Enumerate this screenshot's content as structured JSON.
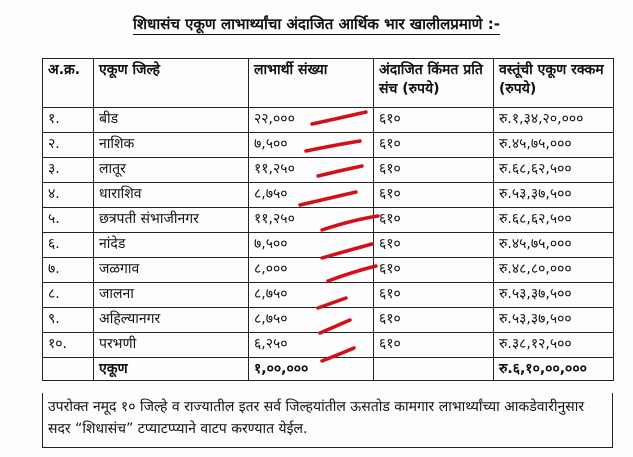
{
  "title": "शिधासंच  एकूण लाभार्थ्यांचा अंदाजित आर्थिक भार खालीलप्रमाणे :-",
  "table": {
    "header": [
      "अ.क्र.",
      "एकूण जिल्हे",
      "लाभार्थी संख्या",
      "अंदाजित किंमत प्रति संच (रुपये)",
      "वस्तूंची एकूण रक्कम (रुपये)"
    ],
    "rows": [
      [
        "१.",
        "बीड",
        "२२,०००",
        "६१०",
        "रु.१,३४,२०,०००"
      ],
      [
        "२.",
        "नाशिक",
        "७,५००",
        "६१०",
        "रु.४५,७५,०००"
      ],
      [
        "३.",
        "लातूर",
        "११,२५०",
        "६१०",
        "रु.६८,६२,५००"
      ],
      [
        "४.",
        "धाराशिव",
        "८,७५०",
        "६१०",
        "रु.५३,३७,५००"
      ],
      [
        "५.",
        "छत्रपती संभाजीनगर",
        "११,२५०",
        "६१०",
        "रु.६८,६२,५००"
      ],
      [
        "६.",
        "नांदेड",
        "७,५००",
        "६१०",
        "रु.४५,७५,०००"
      ],
      [
        "७.",
        "जळगाव",
        "८,०००",
        "६१०",
        "रु.४८,८०,०००"
      ],
      [
        "८.",
        "जालना",
        "८,७५०",
        "६१०",
        "रु.५३,३७,५००"
      ],
      [
        "९.",
        "अहिल्यानगर",
        "८,७५०",
        "६१०",
        "रु.५३,३७,५००"
      ],
      [
        "१०.",
        "परभणी",
        "६,२५०",
        "६१०",
        "रु.३८,१२,५००"
      ]
    ],
    "total": {
      "label": "एकूण",
      "beneficiaries": "१,००,०००",
      "amount": "रु.६,१०,००,०००"
    }
  },
  "footer": "उपरोक्त नमूद १० जिल्हे व राज्यातील इतर सर्व जिल्हयांतील ऊसतोड कामगार लाभार्थ्यांच्या आकडेवारीनुसार सदर “शिधासंच” टप्याटप्प्याने वाटप करण्यात येईल."
}
